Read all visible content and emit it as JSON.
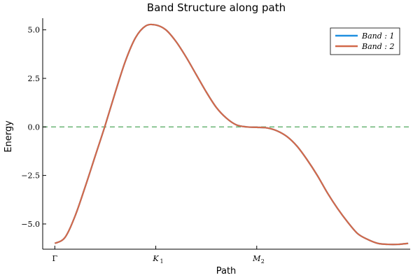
{
  "chart_data": {
    "type": "line",
    "title": "Band Structure along path",
    "xlabel": "Path",
    "ylabel": "Energy",
    "xlim": [
      -0.12,
      3.52
    ],
    "ylim": [
      -6.3,
      5.6
    ],
    "x_ticks": [
      {
        "value": 0,
        "main": "Γ",
        "sub": ""
      },
      {
        "value": 1,
        "main": "K",
        "sub": "1"
      },
      {
        "value": 2,
        "main": "M",
        "sub": "2"
      }
    ],
    "y_ticks": [
      {
        "value": 5.0,
        "label": "5.0"
      },
      {
        "value": 2.5,
        "label": "2.5"
      },
      {
        "value": 0.0,
        "label": "0.0"
      },
      {
        "value": -2.5,
        "label": "−2.5"
      },
      {
        "value": -5.0,
        "label": "−5.0"
      }
    ],
    "reference_line": {
      "y": 0.0,
      "style": "dashed",
      "color": "#73b97d"
    },
    "x": [
      0,
      0.1,
      0.2,
      0.3,
      0.4,
      0.5,
      0.6,
      0.7,
      0.8,
      0.9,
      1.0,
      1.1,
      1.2,
      1.3,
      1.4,
      1.5,
      1.6,
      1.7,
      1.8,
      1.9,
      2.0,
      2.1,
      2.2,
      2.3,
      2.4,
      2.5,
      2.6,
      2.7,
      2.8,
      2.9,
      3.0,
      3.1,
      3.2,
      3.3,
      3.4,
      3.5
    ],
    "series": [
      {
        "name": "Band : 1",
        "color": "#1f8fe0",
        "values": [
          -6.0,
          -5.7,
          -4.6,
          -3.1,
          -1.5,
          0.1,
          1.8,
          3.4,
          4.6,
          5.2,
          5.25,
          5.0,
          4.4,
          3.6,
          2.7,
          1.8,
          1.0,
          0.45,
          0.1,
          0.0,
          -0.02,
          -0.05,
          -0.2,
          -0.5,
          -1.0,
          -1.7,
          -2.5,
          -3.4,
          -4.2,
          -4.9,
          -5.5,
          -5.8,
          -6.0,
          -6.05,
          -6.05,
          -6.0
        ]
      },
      {
        "name": "Band : 2",
        "color": "#d2694a",
        "values": [
          -6.0,
          -5.7,
          -4.6,
          -3.1,
          -1.5,
          0.1,
          1.8,
          3.4,
          4.6,
          5.2,
          5.25,
          5.0,
          4.4,
          3.6,
          2.7,
          1.8,
          1.0,
          0.45,
          0.1,
          0.0,
          -0.02,
          -0.05,
          -0.2,
          -0.5,
          -1.0,
          -1.7,
          -2.5,
          -3.4,
          -4.2,
          -4.9,
          -5.5,
          -5.8,
          -6.0,
          -6.05,
          -6.05,
          -6.0
        ]
      }
    ],
    "legend": {
      "position": "top-right",
      "entries": [
        "Band : 1",
        "Band : 2"
      ]
    },
    "grid": false
  }
}
